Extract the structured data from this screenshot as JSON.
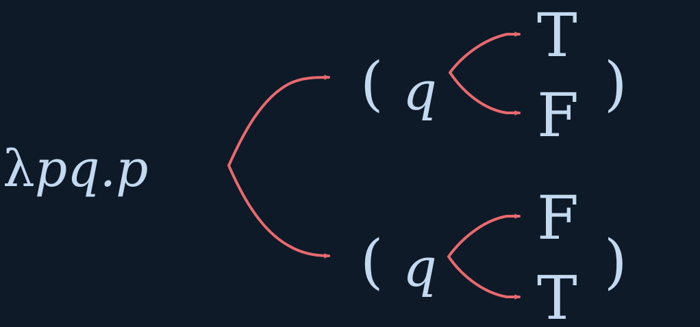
{
  "colors": {
    "background": "#0f1a28",
    "text": "#c2d9ef",
    "arrow": "#e86a6f"
  },
  "expression": {
    "lambda": "λ",
    "params": "pq.p"
  },
  "branches": [
    {
      "open_paren": "(",
      "variable": "q",
      "upper": "T",
      "lower": "F",
      "close_paren": ")"
    },
    {
      "open_paren": "(",
      "variable": "q",
      "upper": "F",
      "lower": "T",
      "close_paren": ")"
    }
  ]
}
